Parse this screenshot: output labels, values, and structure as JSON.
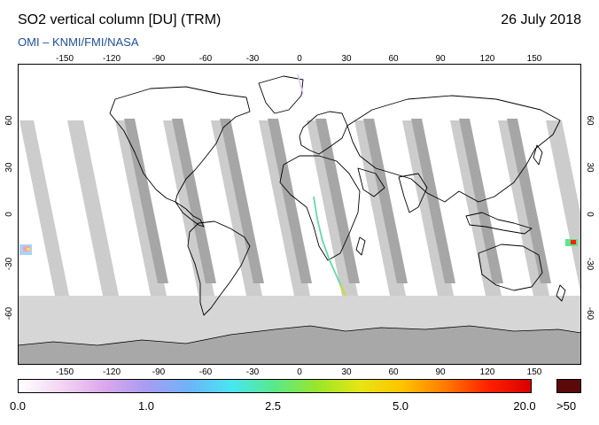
{
  "header": {
    "title": "SO2 vertical column [DU] (TRM)",
    "date": "26 July 2018",
    "credit": "OMI  –  KNMI/FMI/NASA"
  },
  "axes": {
    "lon_labels": [
      "-150",
      "-120",
      "-90",
      "-60",
      "-30",
      "0",
      "30",
      "60",
      "90",
      "120",
      "150"
    ],
    "lat_labels_left": [
      "60",
      "30",
      "0",
      "-30",
      "-60"
    ],
    "lat_labels_right": [
      "60",
      "30",
      "0",
      "-30",
      "-60"
    ]
  },
  "colorbar": {
    "labels": [
      "0.0",
      "1.0",
      "2.5",
      "5.0",
      "20.0"
    ],
    "max_label": ">50",
    "colors": [
      "#ffffff",
      "#f3d6f3",
      "#dca8ec",
      "#a89cf2",
      "#6cb4f8",
      "#48e6f2",
      "#5ae88a",
      "#9ae62a",
      "#e6e614",
      "#ffc200",
      "#ff7a00",
      "#ff2000",
      "#d80000"
    ],
    "max_color": "#5a0a0a"
  },
  "map_colors": {
    "ocean": "#ffffff",
    "swath_light": "#cccccc",
    "swath_dark": "#a6a6a6",
    "polar": "#d6d6d6",
    "land_outline": "#000000"
  }
}
